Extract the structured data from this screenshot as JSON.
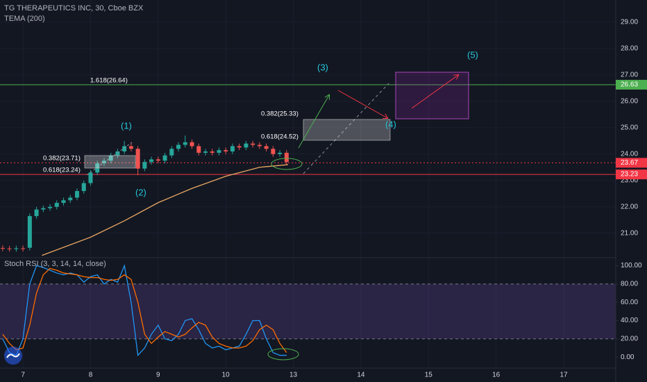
{
  "header": {
    "symbol": "TG THERAPEUTICS INC, 30, Cboe BZX",
    "indicator": "TEMA (200)"
  },
  "annotations": {
    "fib_ext": "1.618(26.64)",
    "fib_a_382": "0.382(23.71)",
    "fib_a_618": "0.618(23.24)",
    "fib_b_382": "0.382(25.33)",
    "fib_b_618": "0.618(24.52)",
    "wave1": "(1)",
    "wave2": "(2)",
    "wave3": "(3)",
    "wave4": "(4)",
    "wave5": "(5)"
  },
  "chart_data": [
    {
      "type": "candlestick",
      "x": [
        -0.3,
        -0.2,
        -0.1,
        0,
        0.1,
        0.2,
        0.3,
        0.4,
        0.5,
        0.6,
        0.7,
        0.8,
        0.9,
        1.0,
        1.1,
        1.2,
        1.3,
        1.4,
        1.5,
        1.6,
        1.7,
        1.8,
        1.9,
        2.0,
        2.1,
        2.2,
        2.3,
        2.4,
        2.5,
        2.6,
        2.7,
        2.8,
        2.9,
        3.0,
        3.1,
        3.2,
        3.3,
        3.4,
        3.5,
        3.6,
        3.7,
        3.8,
        3.9
      ],
      "open": [
        20.44,
        20.42,
        20.4,
        20.43,
        20.45,
        21.65,
        21.9,
        21.95,
        22.0,
        22.15,
        22.25,
        22.35,
        22.6,
        22.9,
        23.3,
        23.65,
        23.75,
        23.95,
        24.1,
        24.3,
        24.2,
        23.45,
        23.7,
        23.8,
        23.75,
        23.95,
        24.2,
        24.35,
        24.45,
        24.3,
        24.05,
        24.1,
        24.05,
        24.15,
        24.1,
        24.3,
        24.25,
        24.4,
        24.35,
        24.3,
        24.2,
        24.0,
        24.05
      ],
      "high": [
        20.54,
        20.52,
        20.53,
        20.53,
        21.75,
        22.0,
        22.05,
        22.1,
        22.25,
        22.35,
        22.45,
        22.7,
        23.0,
        23.4,
        23.75,
        23.85,
        24.05,
        24.2,
        24.5,
        24.45,
        24.3,
        23.8,
        23.9,
        23.9,
        24.05,
        24.3,
        24.45,
        24.7,
        24.55,
        24.4,
        24.2,
        24.2,
        24.25,
        24.25,
        24.4,
        24.4,
        24.5,
        24.5,
        24.45,
        24.4,
        24.3,
        24.15,
        24.15
      ],
      "low": [
        20.32,
        20.3,
        20.3,
        20.31,
        20.35,
        21.55,
        21.8,
        21.85,
        21.9,
        22.05,
        22.15,
        22.25,
        22.5,
        22.8,
        23.2,
        23.55,
        23.65,
        23.85,
        24.0,
        24.1,
        23.2,
        23.35,
        23.6,
        23.65,
        23.65,
        23.85,
        24.1,
        24.25,
        24.2,
        23.95,
        23.95,
        23.95,
        23.95,
        24.0,
        24.0,
        24.15,
        24.15,
        24.25,
        24.2,
        24.1,
        23.9,
        23.9,
        23.6
      ],
      "close": [
        20.42,
        20.4,
        20.43,
        20.41,
        21.65,
        21.9,
        21.95,
        22.0,
        22.15,
        22.25,
        22.35,
        22.6,
        22.9,
        23.3,
        23.65,
        23.75,
        23.95,
        24.1,
        24.3,
        24.2,
        23.45,
        23.7,
        23.8,
        23.75,
        23.95,
        24.2,
        24.35,
        24.45,
        24.3,
        24.05,
        24.1,
        24.05,
        24.15,
        24.1,
        24.3,
        24.25,
        24.4,
        24.35,
        24.3,
        24.2,
        24.0,
        24.05,
        23.7
      ],
      "up_color": "#26a69a",
      "down_color": "#ef5350",
      "tema": {
        "color": "#e9a862",
        "x": [
          0.28,
          1.0,
          1.5,
          2.0,
          2.5,
          3.0,
          3.5,
          3.92
        ],
        "values": [
          20.16,
          20.85,
          21.47,
          22.16,
          22.7,
          23.16,
          23.5,
          23.6
        ]
      },
      "hlines": [
        {
          "value": 26.63,
          "label": "26.63",
          "color": "#4caf50",
          "dash": false
        },
        {
          "value": 23.67,
          "label": "23.67",
          "color": "#f23645",
          "dash": true
        },
        {
          "value": 23.23,
          "label": "23.23",
          "color": "#f23645",
          "dash": false
        }
      ],
      "xlim": [
        -0.34,
        8.77
      ],
      "xticks": [
        {
          "value": 0,
          "label": "7"
        },
        {
          "value": 1,
          "label": "8"
        },
        {
          "value": 2,
          "label": "9"
        },
        {
          "value": 3,
          "label": "10"
        },
        {
          "value": 4,
          "label": "13"
        },
        {
          "value": 5,
          "label": "14"
        },
        {
          "value": 6,
          "label": "15"
        },
        {
          "value": 7,
          "label": "16"
        },
        {
          "value": 8,
          "label": "17"
        }
      ],
      "ylim": [
        20.1,
        29.84
      ],
      "yticks": [
        {
          "value": 29,
          "label": "29.00"
        },
        {
          "value": 28,
          "label": "28.00"
        },
        {
          "value": 27,
          "label": "27.00"
        },
        {
          "value": 26,
          "label": "26.00"
        },
        {
          "value": 25,
          "label": "25.00"
        },
        {
          "value": 24,
          "label": "24.00"
        },
        {
          "value": 23,
          "label": "23.00"
        },
        {
          "value": 22,
          "label": "22.00"
        },
        {
          "value": 21,
          "label": "21.00"
        }
      ],
      "grid": true
    },
    {
      "type": "line",
      "title": "Stoch RSI (3, 3, 14, 14, close)",
      "x": [
        -0.3,
        -0.2,
        -0.1,
        0,
        0.1,
        0.2,
        0.3,
        0.4,
        0.5,
        0.6,
        0.7,
        0.8,
        0.9,
        1.0,
        1.1,
        1.2,
        1.3,
        1.4,
        1.5,
        1.6,
        1.7,
        1.8,
        1.9,
        2.0,
        2.1,
        2.2,
        2.3,
        2.4,
        2.5,
        2.6,
        2.7,
        2.8,
        2.9,
        3.0,
        3.1,
        3.2,
        3.3,
        3.4,
        3.5,
        3.6,
        3.7,
        3.8,
        3.9
      ],
      "series": [
        {
          "color": "#2196f3",
          "values": [
            20,
            5,
            2,
            20,
            80,
            100,
            98,
            95,
            92,
            90,
            92,
            90,
            82,
            88,
            90,
            80,
            85,
            82,
            100,
            60,
            2,
            10,
            25,
            35,
            20,
            18,
            25,
            40,
            42,
            30,
            15,
            10,
            12,
            8,
            10,
            12,
            25,
            40,
            40,
            20,
            5,
            2,
            2
          ]
        },
        {
          "color": "#ff6d00",
          "values": [
            25,
            15,
            8,
            10,
            35,
            70,
            90,
            97,
            95,
            92,
            91,
            90,
            88,
            87,
            87,
            85,
            84,
            85,
            90,
            85,
            60,
            25,
            15,
            22,
            28,
            25,
            22,
            25,
            32,
            38,
            35,
            22,
            15,
            12,
            10,
            10,
            12,
            18,
            30,
            35,
            30,
            15,
            5
          ]
        }
      ],
      "band": [
        20,
        80
      ],
      "band_color": "#7e57c2",
      "xlim": [
        -0.34,
        8.77
      ],
      "ylim": [
        -12,
        108
      ],
      "yticks": [
        {
          "value": 100,
          "label": "100.00"
        },
        {
          "value": 80,
          "label": "80.00"
        },
        {
          "value": 60,
          "label": "60.00"
        },
        {
          "value": 40,
          "label": "40.00"
        },
        {
          "value": 20,
          "label": "20.00"
        },
        {
          "value": 0,
          "label": "0.00"
        }
      ],
      "grid": true
    }
  ]
}
